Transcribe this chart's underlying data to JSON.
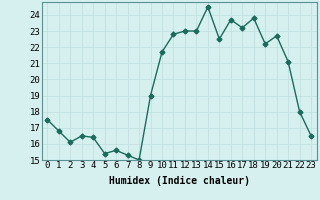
{
  "x": [
    0,
    1,
    2,
    3,
    4,
    5,
    6,
    7,
    8,
    9,
    10,
    11,
    12,
    13,
    14,
    15,
    16,
    17,
    18,
    19,
    20,
    21,
    22,
    23
  ],
  "y": [
    17.5,
    16.8,
    16.1,
    16.5,
    16.4,
    15.4,
    15.6,
    15.3,
    15.0,
    19.0,
    21.7,
    22.8,
    23.0,
    23.0,
    24.5,
    22.5,
    23.7,
    23.2,
    23.8,
    22.2,
    22.7,
    21.1,
    18.0,
    16.5
  ],
  "line_color": "#1a6b5a",
  "marker": "D",
  "marker_size": 2.5,
  "bg_color": "#d6f0f0",
  "grid_color": "#c0dede",
  "xlabel": "Humidex (Indice chaleur)",
  "ylim": [
    15,
    24.8
  ],
  "xlim": [
    -0.5,
    23.5
  ],
  "yticks": [
    15,
    16,
    17,
    18,
    19,
    20,
    21,
    22,
    23,
    24
  ],
  "xticks": [
    0,
    1,
    2,
    3,
    4,
    5,
    6,
    7,
    8,
    9,
    10,
    11,
    12,
    13,
    14,
    15,
    16,
    17,
    18,
    19,
    20,
    21,
    22,
    23
  ],
  "xlabel_fontsize": 7,
  "tick_fontsize": 6.5,
  "line_width": 1.0
}
